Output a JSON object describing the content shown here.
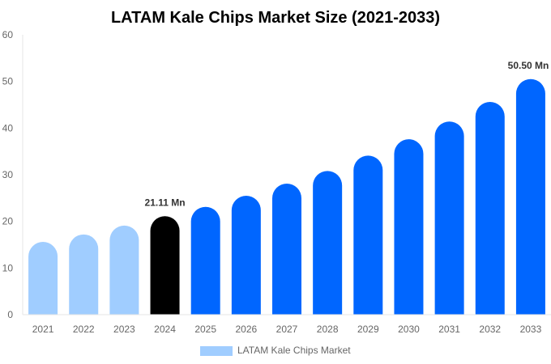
{
  "chart_data": {
    "type": "bar",
    "title": "LATAM Kale Chips Market Size (2021-2033)",
    "xlabel": "",
    "ylabel": "",
    "ylim": [
      0,
      60
    ],
    "yticks": [
      0,
      10,
      20,
      30,
      40,
      50,
      60
    ],
    "grid": false,
    "legend_placement": "bottom",
    "categories": [
      "2021",
      "2022",
      "2023",
      "2024",
      "2025",
      "2026",
      "2027",
      "2028",
      "2029",
      "2030",
      "2031",
      "2032",
      "2033"
    ],
    "series": [
      {
        "name": "LATAM Kale Chips Market",
        "values": [
          15.6,
          17.2,
          19.1,
          21.11,
          23.1,
          25.5,
          28.1,
          30.8,
          34.1,
          37.6,
          41.4,
          45.6,
          50.5
        ]
      }
    ],
    "bar_colors": [
      "#a0cdff",
      "#a0cdff",
      "#a0cdff",
      "#000000",
      "#0066ff",
      "#0066ff",
      "#0066ff",
      "#0066ff",
      "#0066ff",
      "#0066ff",
      "#0066ff",
      "#0066ff",
      "#0066ff"
    ],
    "legend_color": "#a0cdff",
    "annotations": [
      {
        "category": "2024",
        "text": "21.11 Mn"
      },
      {
        "category": "2033",
        "text": "50.50 Mn"
      }
    ]
  }
}
